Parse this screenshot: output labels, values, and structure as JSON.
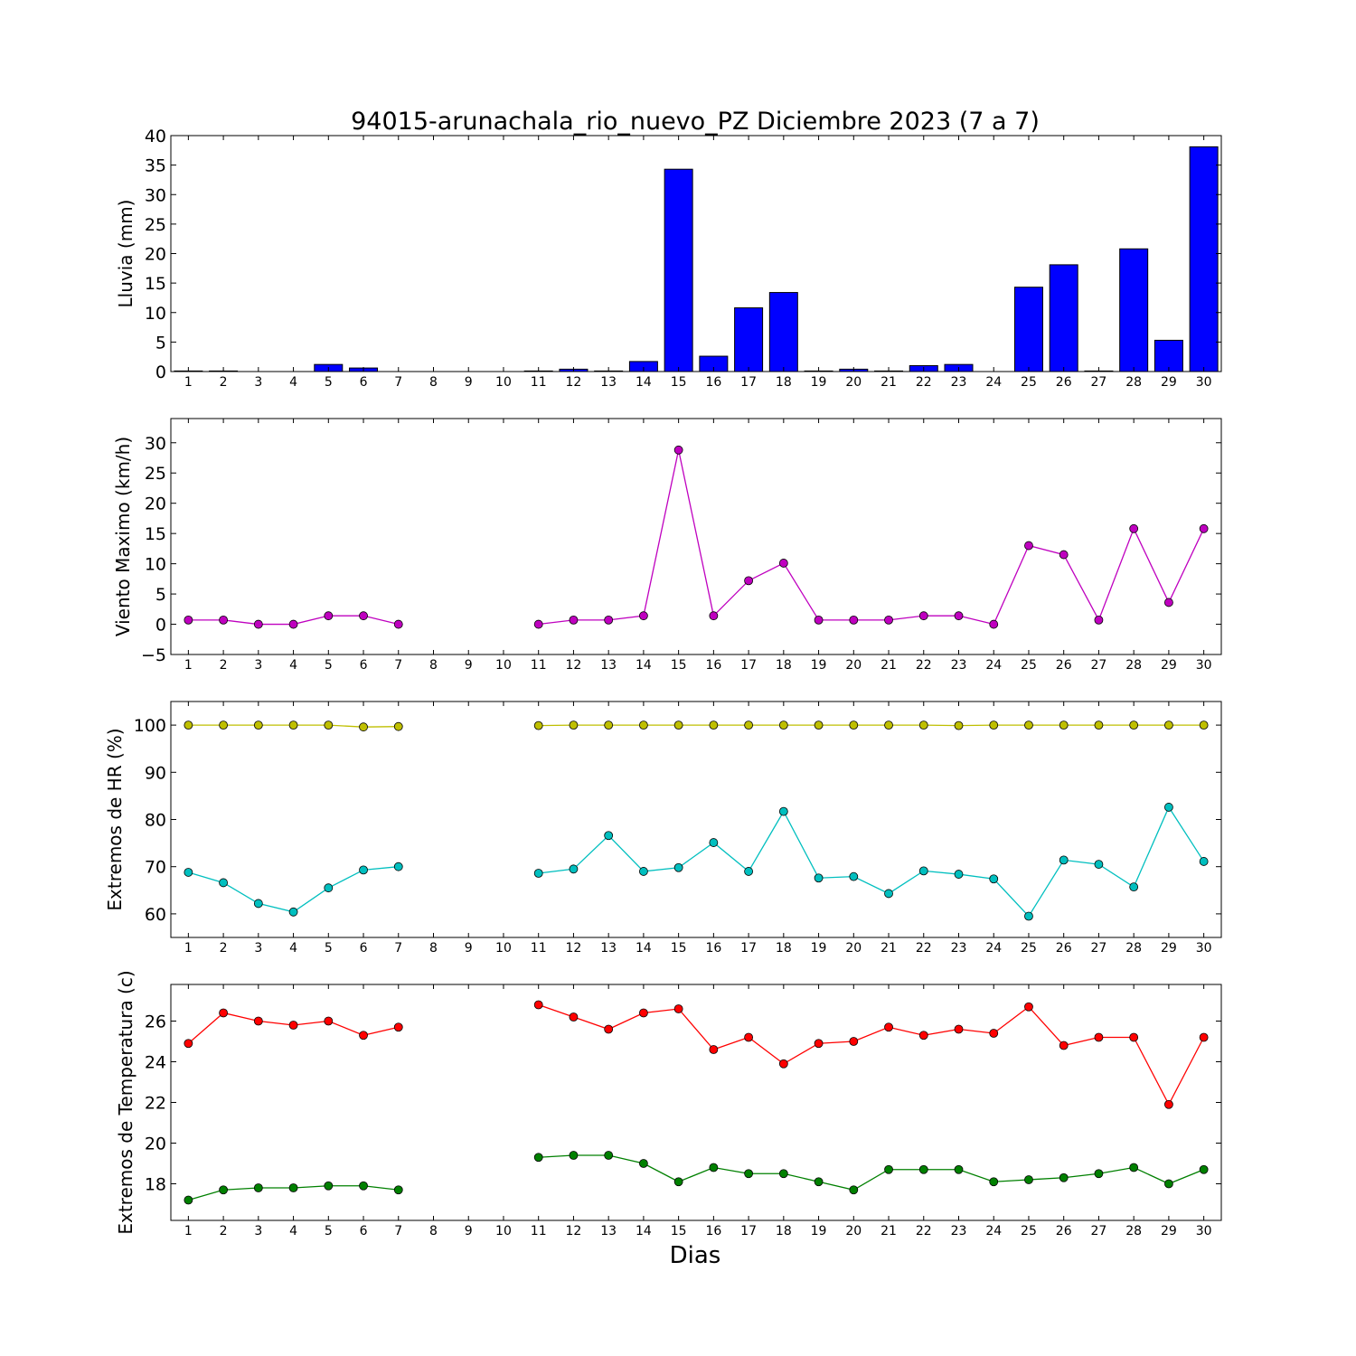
{
  "title": "94015-arunachala_rio_nuevo_PZ Diciembre 2023  (7 a 7)",
  "xlabel": "Dias",
  "x_ticks": [
    "1",
    "2",
    "3",
    "4",
    "5",
    "6",
    "7",
    "8",
    "9",
    "10",
    "11",
    "12",
    "13",
    "14",
    "15",
    "16",
    "17",
    "18",
    "19",
    "20",
    "21",
    "22",
    "23",
    "24",
    "25",
    "26",
    "27",
    "28",
    "29",
    "30"
  ],
  "chart_data": [
    {
      "type": "bar",
      "ylabel": "Lluvia (mm)",
      "ylim": [
        0,
        40
      ],
      "yticks": [
        0,
        5,
        10,
        15,
        20,
        25,
        30,
        35,
        40
      ],
      "categories": [
        "1",
        "2",
        "3",
        "4",
        "5",
        "6",
        "7",
        "8",
        "9",
        "10",
        "11",
        "12",
        "13",
        "14",
        "15",
        "16",
        "17",
        "18",
        "19",
        "20",
        "21",
        "22",
        "23",
        "24",
        "25",
        "26",
        "27",
        "28",
        "29",
        "30"
      ],
      "series": [
        {
          "color": "#0000ff",
          "values": [
            0.1,
            0.1,
            0,
            0,
            1.2,
            0.6,
            0,
            0,
            0,
            0,
            0.1,
            0.4,
            0.1,
            1.7,
            34.3,
            2.6,
            10.8,
            13.4,
            0.1,
            0.4,
            0.1,
            1.0,
            1.2,
            0,
            14.3,
            18.1,
            0.1,
            20.8,
            5.3,
            38.1
          ]
        }
      ],
      "grid": false
    },
    {
      "type": "line",
      "ylabel": "Viento Maximo (km/h)",
      "ylim": [
        -5,
        34
      ],
      "yticks": [
        -5,
        0,
        5,
        10,
        15,
        20,
        25,
        30
      ],
      "x": [
        1,
        2,
        3,
        4,
        5,
        6,
        7,
        8,
        9,
        10,
        11,
        12,
        13,
        14,
        15,
        16,
        17,
        18,
        19,
        20,
        21,
        22,
        23,
        24,
        25,
        26,
        27,
        28,
        29,
        30
      ],
      "series": [
        {
          "color": "#bf00bf",
          "values": [
            0.7,
            0.7,
            0,
            0,
            1.4,
            1.4,
            0,
            null,
            null,
            null,
            0,
            0.7,
            0.7,
            1.4,
            28.8,
            1.4,
            7.2,
            10.1,
            0.7,
            0.7,
            0.7,
            1.4,
            1.4,
            0,
            13.0,
            11.5,
            0.7,
            15.8,
            3.6,
            15.8
          ]
        }
      ],
      "grid": false
    },
    {
      "type": "line",
      "ylabel": "Extremos de HR (%)",
      "ylim": [
        55,
        105
      ],
      "yticks": [
        60,
        70,
        80,
        90,
        100
      ],
      "x": [
        1,
        2,
        3,
        4,
        5,
        6,
        7,
        8,
        9,
        10,
        11,
        12,
        13,
        14,
        15,
        16,
        17,
        18,
        19,
        20,
        21,
        22,
        23,
        24,
        25,
        26,
        27,
        28,
        29,
        30
      ],
      "series": [
        {
          "color": "#bfbf00",
          "values": [
            100,
            100,
            100,
            100,
            100,
            99.6,
            99.7,
            null,
            null,
            null,
            99.9,
            100,
            100,
            100,
            100,
            100,
            100,
            100,
            100,
            100,
            100,
            100,
            99.9,
            100,
            100,
            100,
            100,
            100,
            100,
            100
          ]
        },
        {
          "color": "#00bfbf",
          "values": [
            68.8,
            66.6,
            62.2,
            60.4,
            65.5,
            69.3,
            70.0,
            null,
            null,
            null,
            68.6,
            69.5,
            76.6,
            69.0,
            69.8,
            75.1,
            69.0,
            81.7,
            67.6,
            67.9,
            64.3,
            69.1,
            68.4,
            67.4,
            59.5,
            71.4,
            70.5,
            65.7,
            82.6,
            71.1
          ]
        }
      ],
      "grid": false
    },
    {
      "type": "line",
      "ylabel": "Extremos de Temperatura (c)",
      "ylim": [
        16.2,
        27.8
      ],
      "yticks": [
        18,
        20,
        22,
        24,
        26
      ],
      "x": [
        1,
        2,
        3,
        4,
        5,
        6,
        7,
        8,
        9,
        10,
        11,
        12,
        13,
        14,
        15,
        16,
        17,
        18,
        19,
        20,
        21,
        22,
        23,
        24,
        25,
        26,
        27,
        28,
        29,
        30
      ],
      "series": [
        {
          "color": "#ff0000",
          "values": [
            24.9,
            26.4,
            26.0,
            25.8,
            26.0,
            25.3,
            25.7,
            null,
            null,
            null,
            26.8,
            26.2,
            25.6,
            26.4,
            26.6,
            24.6,
            25.2,
            23.9,
            24.9,
            25.0,
            25.7,
            25.3,
            25.6,
            25.4,
            26.7,
            24.8,
            25.2,
            25.2,
            21.9,
            25.2
          ]
        },
        {
          "color": "#008000",
          "values": [
            17.2,
            17.7,
            17.8,
            17.8,
            17.9,
            17.9,
            17.7,
            null,
            null,
            null,
            19.3,
            19.4,
            19.4,
            19.0,
            18.1,
            18.8,
            18.5,
            18.5,
            18.1,
            17.7,
            18.7,
            18.7,
            18.7,
            18.1,
            18.2,
            18.3,
            18.5,
            18.8,
            18.0,
            18.7
          ]
        }
      ],
      "grid": false
    }
  ]
}
